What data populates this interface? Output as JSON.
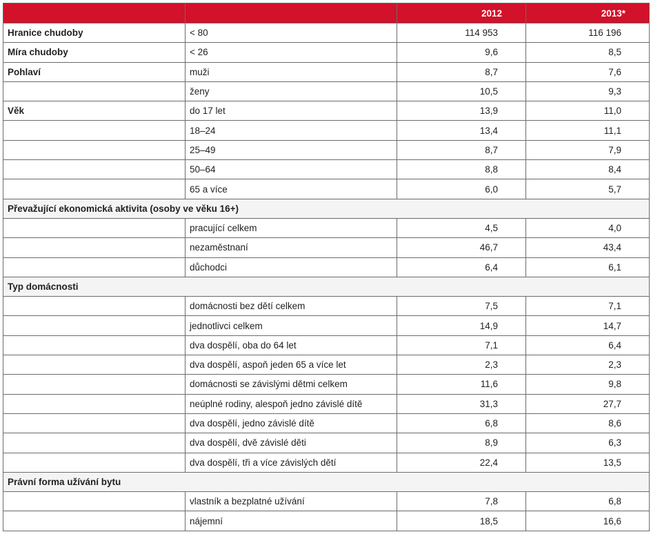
{
  "header": {
    "col_2012": "2012",
    "col_2013": "2013*"
  },
  "rows": [
    {
      "label": "Hranice chudoby",
      "sub": "< 80",
      "v2012": "114 953",
      "v2013": "116 196"
    },
    {
      "label": "Míra chudoby",
      "sub": "< 26",
      "v2012": "9,6",
      "v2013": "8,5"
    },
    {
      "label": "Pohlaví",
      "sub": "muži",
      "v2012": "8,7",
      "v2013": "7,6"
    },
    {
      "label": "",
      "sub": "ženy",
      "v2012": "10,5",
      "v2013": "9,3"
    },
    {
      "label": "Věk",
      "sub": "do 17 let",
      "v2012": "13,9",
      "v2013": "11,0"
    },
    {
      "label": "",
      "sub": "18–24",
      "v2012": "13,4",
      "v2013": "11,1"
    },
    {
      "label": "",
      "sub": "25–49",
      "v2012": "8,7",
      "v2013": "7,9"
    },
    {
      "label": "",
      "sub": "50–64",
      "v2012": "8,8",
      "v2013": "8,4"
    },
    {
      "label": "",
      "sub": "65 a více",
      "v2012": "6,0",
      "v2013": "5,7"
    },
    {
      "section": "Převažující ekonomická aktivita (osoby ve věku 16+)"
    },
    {
      "label": "",
      "sub": "pracující celkem",
      "v2012": "4,5",
      "v2013": "4,0"
    },
    {
      "label": "",
      "sub": "nezaměstnaní",
      "v2012": "46,7",
      "v2013": "43,4"
    },
    {
      "label": "",
      "sub": "důchodci",
      "v2012": "6,4",
      "v2013": "6,1"
    },
    {
      "section": "Typ domácnosti"
    },
    {
      "label": "",
      "sub": "domácnosti bez dětí celkem",
      "v2012": "7,5",
      "v2013": "7,1"
    },
    {
      "label": "",
      "sub": "jednotlivci celkem",
      "v2012": "14,9",
      "v2013": "14,7"
    },
    {
      "label": "",
      "sub": "dva dospělí, oba do 64 let",
      "v2012": "7,1",
      "v2013": "6,4"
    },
    {
      "label": "",
      "sub": "dva dospělí, aspoň jeden 65 a více let",
      "v2012": "2,3",
      "v2013": "2,3"
    },
    {
      "label": "",
      "sub": "domácnosti se závislými dětmi celkem",
      "v2012": "11,6",
      "v2013": "9,8"
    },
    {
      "label": "",
      "sub": "neúplné rodiny, alespoň jedno závislé dítě",
      "v2012": "31,3",
      "v2013": "27,7"
    },
    {
      "label": "",
      "sub": "dva dospělí, jedno závislé dítě",
      "v2012": "6,8",
      "v2013": "8,6"
    },
    {
      "label": "",
      "sub": "dva dospělí, dvě závislé děti",
      "v2012": "8,9",
      "v2013": "6,3"
    },
    {
      "label": "",
      "sub": "dva dospělí, tři a více závislých dětí",
      "v2012": "22,4",
      "v2013": "13,5"
    },
    {
      "section": "Právní forma užívání bytu"
    },
    {
      "label": "",
      "sub": "vlastník a bezplatné užívání",
      "v2012": "7,8",
      "v2013": "6,8"
    },
    {
      "label": "",
      "sub": "nájemní",
      "v2012": "18,5",
      "v2013": "16,6"
    }
  ],
  "colors": {
    "header_bg": "#d2112a",
    "header_text": "#ffffff",
    "border": "#6b6b6b"
  }
}
